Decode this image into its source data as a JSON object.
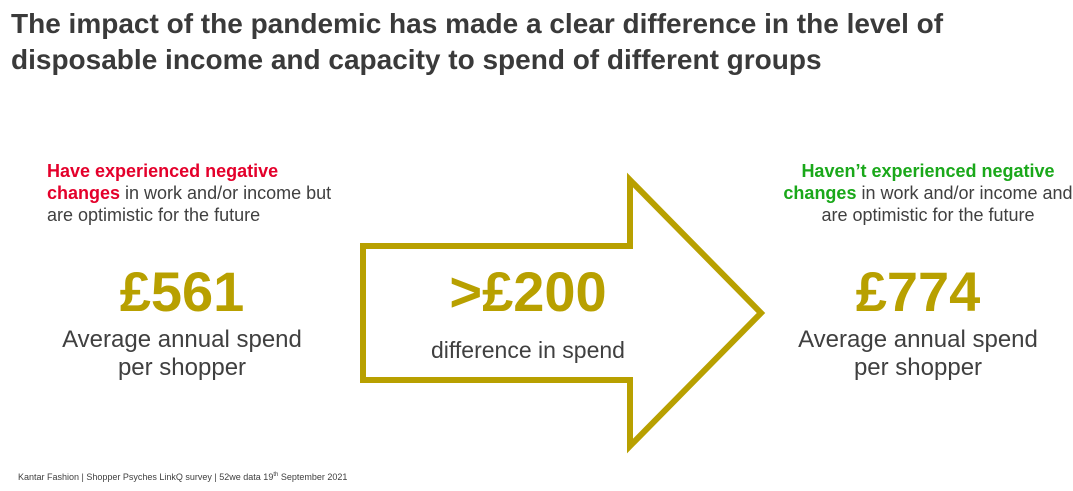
{
  "title": "The impact of the pandemic has made a clear difference in the level of disposable income and capacity to spend of different groups",
  "left": {
    "highlight": "Have experienced negative changes",
    "rest": " in work and/or income but are optimistic for the future",
    "value": "£561",
    "caption": "Average annual spend per shopper"
  },
  "middle": {
    "value": ">£200",
    "caption": "difference in spend"
  },
  "right": {
    "highlight": "Haven’t experienced negative changes",
    "rest": " in work and/or income and are optimistic for the future",
    "value": "£774",
    "caption": "Average annual spend per shopper"
  },
  "footer": {
    "text": "Kantar Fashion | Shopper Psyches LinkQ survey | 52we data 19",
    "sup": "th",
    "text_end": " September 2021"
  },
  "colors": {
    "negative": "#e4002b",
    "positive": "#1aa81a",
    "accent": "#b8a000",
    "text": "#404040"
  }
}
